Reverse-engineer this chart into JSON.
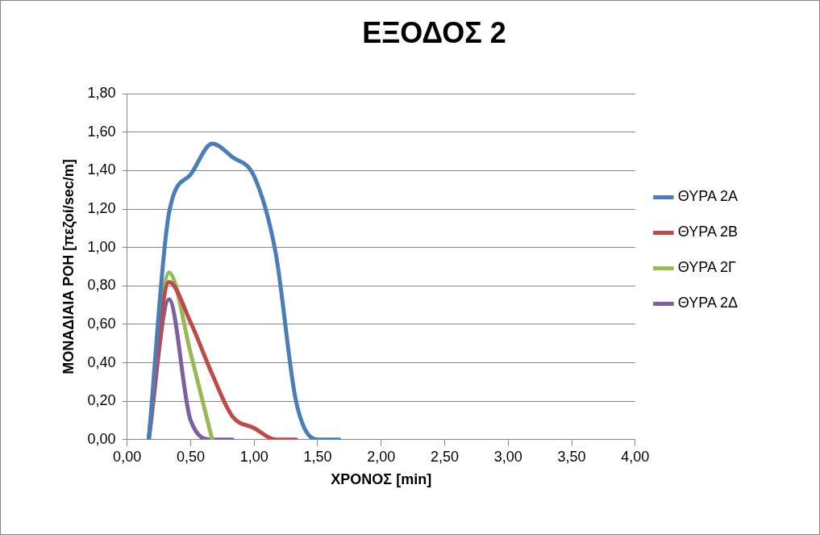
{
  "chart_data": {
    "type": "line",
    "title": "ΕΞΟΔΟΣ 2",
    "xlabel": "ΧΡΟΝΟΣ [min]",
    "ylabel": "ΜΟΝΑΔΙΑΙΑ ΡΟΗ [πεζοί/sec/m]",
    "x": [
      0.17,
      0.33,
      0.5,
      0.67,
      0.83,
      1.0,
      1.17,
      1.33,
      1.5,
      1.67
    ],
    "series": [
      {
        "name": "ΘΥΡΑ 2Α",
        "color": "#4a7ebb",
        "values": [
          0,
          1.18,
          1.38,
          1.54,
          1.47,
          1.37,
          0.97,
          0.2,
          0,
          0
        ]
      },
      {
        "name": "ΘΥΡΑ 2Β",
        "color": "#be4b48",
        "x": [
          0.17,
          0.33,
          0.5,
          0.67,
          0.83,
          1.0,
          1.17,
          1.33
        ],
        "values": [
          0,
          0.82,
          0.61,
          0.34,
          0.12,
          0.06,
          0,
          0
        ]
      },
      {
        "name": "ΘΥΡΑ 2Γ",
        "color": "#98b954",
        "x": [
          0.17,
          0.33,
          0.5,
          0.67
        ],
        "values": [
          0,
          0.87,
          0.45,
          0
        ]
      },
      {
        "name": "ΘΥΡΑ 2Δ",
        "color": "#7d60a0",
        "x": [
          0.17,
          0.33,
          0.5,
          0.67,
          0.83
        ],
        "values": [
          0,
          0.73,
          0.1,
          0,
          0
        ]
      }
    ],
    "xlim": [
      0,
      4
    ],
    "xticks": [
      {
        "value": 0,
        "label": "0,00"
      },
      {
        "value": 0.5,
        "label": "0,50"
      },
      {
        "value": 1,
        "label": "1,00"
      },
      {
        "value": 1.5,
        "label": "1,50"
      },
      {
        "value": 2,
        "label": "2,00"
      },
      {
        "value": 2.5,
        "label": "2,50"
      },
      {
        "value": 3,
        "label": "3,00"
      },
      {
        "value": 3.5,
        "label": "3,50"
      },
      {
        "value": 4,
        "label": "4,00"
      }
    ],
    "ylim": [
      0,
      1.8
    ],
    "yticks": [
      {
        "value": 0,
        "label": "0,00"
      },
      {
        "value": 0.2,
        "label": "0,20"
      },
      {
        "value": 0.4,
        "label": "0,40"
      },
      {
        "value": 0.6,
        "label": "0,60"
      },
      {
        "value": 0.8,
        "label": "0,80"
      },
      {
        "value": 1,
        "label": "1,00"
      },
      {
        "value": 1.2,
        "label": "1,20"
      },
      {
        "value": 1.4,
        "label": "1,40"
      },
      {
        "value": 1.6,
        "label": "1,60"
      },
      {
        "value": 1.8,
        "label": "1,80"
      }
    ],
    "grid": "y",
    "legend": "right",
    "marker": "none",
    "line_style": "solid"
  }
}
